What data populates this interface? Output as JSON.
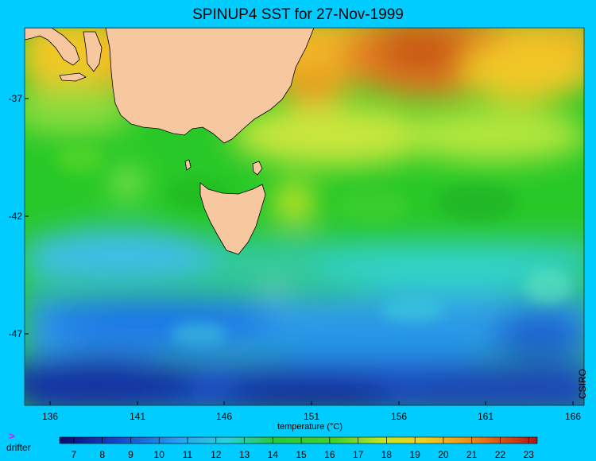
{
  "title": "SPINUP4 SST for 27-Nov-1999",
  "map": {
    "lat_ticks": [
      "-37",
      "-42",
      "-47"
    ],
    "lon_ticks": [
      "136",
      "141",
      "146",
      "151",
      "156",
      "161",
      "166"
    ],
    "xaxis_label": "temperature (°C)",
    "credit": "CSIRO",
    "land_color": "#f7c8a0",
    "ocean_colors": {
      "warm": "#c86410",
      "orange": "#f0a020",
      "yellow": "#e6e61e",
      "lightgreen": "#9be63c",
      "green": "#28c828",
      "cyan": "#28c8b4",
      "lightblue": "#3cb4e6",
      "blue": "#1e6ee6",
      "darkblue": "#14289b"
    }
  },
  "legend": {
    "symbol": ">",
    "label": "drifter",
    "symbol_color": "#ff00ff"
  },
  "colorbar": {
    "ticks": [
      "7",
      "8",
      "9",
      "10",
      "11",
      "12",
      "13",
      "14",
      "15",
      "16",
      "17",
      "18",
      "19",
      "20",
      "21",
      "22",
      "23"
    ],
    "min": 6.5,
    "max": 23.3,
    "unit": "°C"
  }
}
